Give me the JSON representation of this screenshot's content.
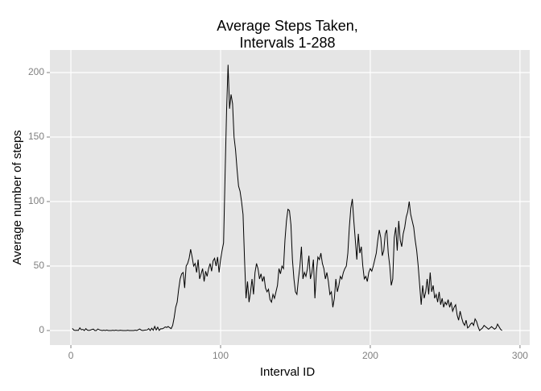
{
  "chart_data": {
    "type": "line",
    "title": [
      "Average Steps Taken,",
      "Intervals 1-288"
    ],
    "x_label": "Interval ID",
    "y_label": "Average number of steps",
    "xlim": [
      -14,
      306.5
    ],
    "ylim": [
      -11.25,
      217.5
    ],
    "xticks": [
      0,
      100,
      200,
      300
    ],
    "yticks": [
      0,
      50,
      100,
      150,
      200
    ],
    "grid": true,
    "x": [
      1,
      2,
      3,
      4,
      5,
      6,
      7,
      8,
      9,
      10,
      11,
      12,
      13,
      14,
      15,
      16,
      17,
      18,
      19,
      20,
      21,
      22,
      23,
      24,
      25,
      26,
      27,
      28,
      29,
      30,
      31,
      32,
      33,
      34,
      35,
      36,
      37,
      38,
      39,
      40,
      41,
      42,
      43,
      44,
      45,
      46,
      47,
      48,
      49,
      50,
      51,
      52,
      53,
      54,
      55,
      56,
      57,
      58,
      59,
      60,
      61,
      62,
      63,
      64,
      65,
      66,
      67,
      68,
      69,
      70,
      71,
      72,
      73,
      74,
      75,
      76,
      77,
      78,
      79,
      80,
      81,
      82,
      83,
      84,
      85,
      86,
      87,
      88,
      89,
      90,
      91,
      92,
      93,
      94,
      95,
      96,
      97,
      98,
      99,
      100,
      101,
      102,
      103,
      104,
      105,
      106,
      107,
      108,
      109,
      110,
      111,
      112,
      113,
      114,
      115,
      116,
      117,
      118,
      119,
      120,
      121,
      122,
      123,
      124,
      125,
      126,
      127,
      128,
      129,
      130,
      131,
      132,
      133,
      134,
      135,
      136,
      137,
      138,
      139,
      140,
      141,
      142,
      143,
      144,
      145,
      146,
      147,
      148,
      149,
      150,
      151,
      152,
      153,
      154,
      155,
      156,
      157,
      158,
      159,
      160,
      161,
      162,
      163,
      164,
      165,
      166,
      167,
      168,
      169,
      170,
      171,
      172,
      173,
      174,
      175,
      176,
      177,
      178,
      179,
      180,
      181,
      182,
      183,
      184,
      185,
      186,
      187,
      188,
      189,
      190,
      191,
      192,
      193,
      194,
      195,
      196,
      197,
      198,
      199,
      200,
      201,
      202,
      203,
      204,
      205,
      206,
      207,
      208,
      209,
      210,
      211,
      212,
      213,
      214,
      215,
      216,
      217,
      218,
      219,
      220,
      221,
      222,
      223,
      224,
      225,
      226,
      227,
      228,
      229,
      230,
      231,
      232,
      233,
      234,
      235,
      236,
      237,
      238,
      239,
      240,
      241,
      242,
      243,
      244,
      245,
      246,
      247,
      248,
      249,
      250,
      251,
      252,
      253,
      254,
      255,
      256,
      257,
      258,
      259,
      260,
      261,
      262,
      263,
      264,
      265,
      266,
      267,
      268,
      269,
      270,
      271,
      272,
      273,
      274,
      275,
      276,
      277,
      278,
      279,
      280,
      281,
      282,
      283,
      284,
      285,
      286,
      287,
      288
    ],
    "series": [
      {
        "color": "#000000",
        "values": [
          1.7,
          0.3,
          0.1,
          0.2,
          0.1,
          2.1,
          0.5,
          0.9,
          0,
          1.5,
          0.3,
          0.1,
          0.3,
          0.8,
          1.1,
          0,
          0,
          1.2,
          0.6,
          0.2,
          0,
          0.3,
          0,
          0.4,
          0,
          0,
          0,
          0.2,
          0,
          0.3,
          0.1,
          0,
          0.2,
          0.1,
          0,
          0,
          0,
          0.2,
          0,
          0,
          0,
          0,
          0.3,
          0,
          0.6,
          1.2,
          0.3,
          0,
          0.2,
          0.4,
          0.5,
          1.5,
          0,
          1.8,
          0.2,
          3.2,
          0.4,
          2.6,
          0.1,
          1.4,
          1.3,
          1.9,
          2.8,
          2.4,
          3.1,
          2.2,
          1.5,
          4,
          10,
          18,
          22,
          32,
          40,
          44,
          45,
          33,
          50,
          52,
          56,
          63,
          57,
          50,
          52,
          45,
          55,
          40,
          44,
          48,
          38,
          46,
          42,
          48,
          52,
          46,
          54,
          56,
          50,
          57,
          45,
          55,
          62,
          68,
          120,
          170,
          206,
          172,
          183,
          176,
          150,
          140,
          125,
          112,
          108,
          100,
          90,
          55,
          25,
          38,
          22,
          30,
          40,
          28,
          45,
          52,
          48,
          40,
          44,
          38,
          42,
          33,
          30,
          32,
          24,
          22,
          28,
          25,
          30,
          35,
          48,
          44,
          50,
          48,
          70,
          85,
          94,
          93,
          82,
          55,
          40,
          30,
          28,
          40,
          50,
          65,
          40,
          45,
          42,
          48,
          58,
          40,
          45,
          55,
          25,
          45,
          57,
          55,
          60,
          52,
          48,
          40,
          45,
          38,
          28,
          30,
          18,
          25,
          40,
          30,
          35,
          42,
          40,
          45,
          48,
          50,
          60,
          80,
          95,
          102,
          85,
          70,
          55,
          75,
          60,
          65,
          50,
          40,
          42,
          38,
          45,
          48,
          46,
          50,
          55,
          60,
          70,
          78,
          72,
          58,
          62,
          75,
          78,
          60,
          50,
          35,
          40,
          72,
          80,
          62,
          85,
          70,
          65,
          75,
          80,
          88,
          92,
          100,
          90,
          85,
          80,
          70,
          62,
          50,
          35,
          20,
          35,
          25,
          30,
          40,
          28,
          45,
          30,
          35,
          25,
          28,
          22,
          30,
          20,
          25,
          18,
          22,
          20,
          24,
          18,
          22,
          15,
          18,
          20,
          12,
          8,
          15,
          10,
          6,
          4,
          8,
          2,
          3,
          5,
          6,
          4,
          9,
          7,
          3,
          0,
          1,
          2,
          4,
          3,
          2,
          1,
          2,
          3,
          2,
          1,
          2,
          5,
          3,
          1,
          0
        ]
      }
    ]
  }
}
